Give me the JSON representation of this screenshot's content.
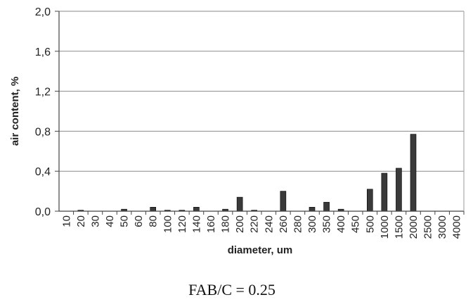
{
  "chart_data": {
    "type": "bar",
    "title": "",
    "caption": "FAB/C = 0.25",
    "xlabel": "diameter, um",
    "ylabel": "air content, %",
    "ylim": [
      0,
      2.0
    ],
    "yticks": [
      "0,0",
      "0,4",
      "0,8",
      "1,2",
      "1,6",
      "2,0"
    ],
    "grid": true,
    "legend": "none",
    "bar_color": "#3a3a3a",
    "categories": [
      "10",
      "20",
      "30",
      "40",
      "50",
      "60",
      "80",
      "100",
      "120",
      "140",
      "160",
      "180",
      "200",
      "220",
      "240",
      "260",
      "280",
      "300",
      "350",
      "400",
      "450",
      "500",
      "1000",
      "1500",
      "2000",
      "2500",
      "3000",
      "4000"
    ],
    "values": [
      0.0,
      0.01,
      0.0,
      0.0,
      0.02,
      0.0,
      0.04,
      0.01,
      0.01,
      0.04,
      0.0,
      0.02,
      0.14,
      0.01,
      0.0,
      0.2,
      0.0,
      0.04,
      0.09,
      0.02,
      0.0,
      0.22,
      0.38,
      0.43,
      0.77,
      0.0,
      0.0,
      0.0
    ]
  }
}
